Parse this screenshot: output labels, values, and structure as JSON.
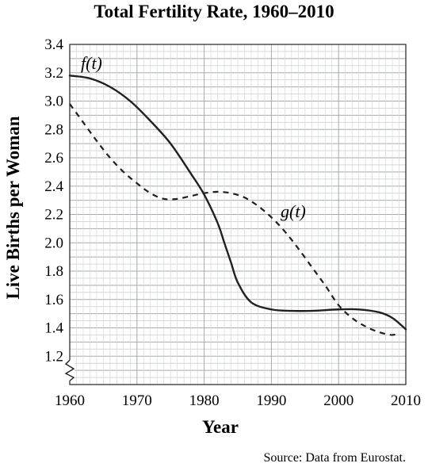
{
  "chart_data": {
    "type": "line",
    "title": "Total Fertility Rate, 1960–2010",
    "xlabel": "Year",
    "ylabel": "Live Births per Woman",
    "xlim": [
      1960,
      2010
    ],
    "ylim": [
      1.0,
      3.4
    ],
    "axis_break": "y",
    "grid": true,
    "x_ticks": [
      "1960",
      "1970",
      "1980",
      "1990",
      "2000",
      "2010"
    ],
    "y_ticks": [
      "1.2",
      "1.4",
      "1.6",
      "1.8",
      "2.0",
      "2.2",
      "2.4",
      "2.6",
      "2.8",
      "3.0",
      "3.2",
      "3.4"
    ],
    "source": "Source: Data from Eurostat.",
    "series": [
      {
        "name": "f(t)",
        "style": "solid",
        "x": [
          1960,
          1963,
          1966,
          1969,
          1972,
          1975,
          1978,
          1980,
          1982,
          1983,
          1984,
          1985,
          1987,
          1990,
          1993,
          1996,
          2000,
          2003,
          2006,
          2008,
          2010
        ],
        "y": [
          3.18,
          3.16,
          3.1,
          3.0,
          2.86,
          2.7,
          2.49,
          2.34,
          2.14,
          2.0,
          1.86,
          1.72,
          1.58,
          1.53,
          1.52,
          1.52,
          1.53,
          1.53,
          1.51,
          1.47,
          1.39
        ]
      },
      {
        "name": "g(t)",
        "style": "dashed",
        "x": [
          1960,
          1962,
          1964,
          1966,
          1968,
          1970,
          1972,
          1974,
          1976,
          1978,
          1980,
          1982,
          1984,
          1986,
          1988,
          1990,
          1992,
          1994,
          1996,
          1998,
          2000,
          2002,
          2004,
          2006,
          2008,
          2009
        ],
        "y": [
          2.98,
          2.85,
          2.72,
          2.6,
          2.5,
          2.42,
          2.35,
          2.31,
          2.31,
          2.33,
          2.35,
          2.36,
          2.35,
          2.32,
          2.26,
          2.18,
          2.08,
          1.96,
          1.83,
          1.7,
          1.56,
          1.47,
          1.41,
          1.37,
          1.35,
          1.37
        ]
      }
    ]
  }
}
